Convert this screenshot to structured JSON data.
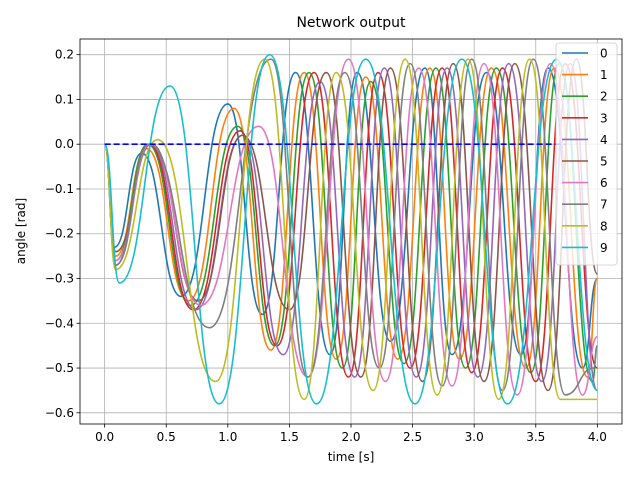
{
  "chart_data": {
    "type": "line",
    "title": "Network output",
    "xlabel": "time [s]",
    "ylabel": "angle [rad]",
    "xlim": [
      -0.2,
      4.2
    ],
    "ylim": [
      -0.625,
      0.235
    ],
    "xticks": [
      0.0,
      0.5,
      1.0,
      1.5,
      2.0,
      2.5,
      3.0,
      3.5,
      4.0
    ],
    "xtick_labels": [
      "0.0",
      "0.5",
      "1.0",
      "1.5",
      "2.0",
      "2.5",
      "3.0",
      "3.5",
      "4.0"
    ],
    "yticks": [
      -0.6,
      -0.5,
      -0.4,
      -0.3,
      -0.2,
      -0.1,
      0.0,
      0.1,
      0.2
    ],
    "ytick_labels": [
      "−0.6",
      "−0.5",
      "−0.4",
      "−0.3",
      "−0.2",
      "−0.1",
      "0.0",
      "0.1",
      "0.2"
    ],
    "grid": true,
    "legend_position": "top-right",
    "reference_line": {
      "y": 0.0,
      "x_range": [
        0.0,
        3.75
      ],
      "style": "dashed",
      "color": "#0000ff"
    },
    "series": [
      {
        "name": "0",
        "color": "#1f77b4",
        "x": [
          0.0,
          0.08,
          0.3,
          0.62,
          1.0,
          1.28,
          1.55,
          1.83,
          2.05,
          2.32,
          2.6,
          2.82,
          3.1,
          3.38,
          3.6,
          3.88,
          4.0
        ],
        "y": [
          0.0,
          -0.23,
          -0.02,
          -0.34,
          0.09,
          -0.38,
          0.16,
          -0.47,
          0.16,
          -0.44,
          0.17,
          -0.47,
          0.16,
          -0.47,
          0.17,
          -0.5,
          -0.3
        ]
      },
      {
        "name": "1",
        "color": "#ff7f0e",
        "x": [
          0.0,
          0.09,
          0.34,
          0.68,
          1.05,
          1.35,
          1.62,
          1.88,
          2.12,
          2.38,
          2.64,
          2.88,
          3.14,
          3.42,
          3.65,
          3.92,
          4.0
        ],
        "y": [
          0.0,
          -0.25,
          -0.01,
          -0.35,
          0.08,
          -0.46,
          0.16,
          -0.48,
          0.15,
          -0.48,
          0.17,
          -0.48,
          0.17,
          -0.5,
          0.17,
          -0.52,
          -0.3
        ]
      },
      {
        "name": "2",
        "color": "#2ca02c",
        "x": [
          0.0,
          0.09,
          0.35,
          0.7,
          1.08,
          1.38,
          1.66,
          1.93,
          2.16,
          2.43,
          2.69,
          2.93,
          3.18,
          3.46,
          3.69,
          3.96,
          4.0
        ],
        "y": [
          0.0,
          -0.26,
          0.0,
          -0.36,
          0.04,
          -0.45,
          0.16,
          -0.5,
          0.14,
          -0.49,
          0.17,
          -0.5,
          0.17,
          -0.51,
          0.18,
          -0.53,
          -0.45
        ]
      },
      {
        "name": "3",
        "color": "#d62728",
        "x": [
          0.0,
          0.09,
          0.36,
          0.72,
          1.1,
          1.4,
          1.7,
          1.98,
          2.22,
          2.48,
          2.74,
          2.98,
          3.23,
          3.5,
          3.74,
          4.0
        ],
        "y": [
          0.0,
          -0.27,
          0.0,
          -0.37,
          0.03,
          -0.45,
          0.16,
          -0.52,
          0.16,
          -0.5,
          0.17,
          -0.51,
          0.17,
          -0.53,
          0.18,
          -0.5
        ]
      },
      {
        "name": "4",
        "color": "#9467bd",
        "x": [
          0.0,
          0.09,
          0.37,
          0.74,
          1.12,
          1.45,
          1.75,
          2.03,
          2.27,
          2.53,
          2.78,
          3.03,
          3.28,
          3.55,
          3.78,
          4.0
        ],
        "y": [
          0.0,
          -0.27,
          0.0,
          -0.37,
          0.02,
          -0.47,
          0.14,
          -0.52,
          0.17,
          -0.52,
          0.17,
          -0.52,
          0.18,
          -0.53,
          0.18,
          -0.55
        ]
      },
      {
        "name": "5",
        "color": "#8c564b",
        "x": [
          0.0,
          0.09,
          0.38,
          0.76,
          1.12,
          1.5,
          1.8,
          2.08,
          2.32,
          2.58,
          2.83,
          3.08,
          3.33,
          3.6,
          3.83,
          4.0
        ],
        "y": [
          0.0,
          -0.24,
          0.0,
          -0.35,
          0.02,
          -0.37,
          0.16,
          -0.52,
          0.17,
          -0.53,
          0.18,
          -0.53,
          0.18,
          -0.55,
          0.19,
          -0.29
        ]
      },
      {
        "name": "6",
        "color": "#e377c2",
        "x": [
          0.0,
          0.09,
          0.37,
          0.78,
          1.25,
          1.65,
          1.98,
          2.28,
          2.55,
          2.82,
          3.08,
          3.35,
          3.62,
          3.88,
          4.0
        ],
        "y": [
          0.0,
          -0.26,
          0.0,
          -0.36,
          0.04,
          -0.52,
          0.19,
          -0.53,
          0.17,
          -0.54,
          0.18,
          -0.56,
          0.18,
          -0.56,
          -0.43
        ]
      },
      {
        "name": "7",
        "color": "#7f7f7f",
        "x": [
          0.0,
          0.09,
          0.36,
          0.85,
          1.35,
          1.65,
          1.95,
          2.23,
          2.48,
          2.74,
          2.98,
          3.23,
          3.48,
          3.74,
          3.97,
          4.0
        ],
        "y": [
          0.0,
          -0.27,
          0.0,
          -0.41,
          0.19,
          -0.52,
          0.16,
          -0.5,
          0.18,
          -0.54,
          0.19,
          -0.55,
          0.19,
          -0.56,
          -0.5,
          -0.45
        ]
      },
      {
        "name": "8",
        "color": "#bcbd22",
        "x": [
          0.0,
          0.09,
          0.43,
          0.9,
          1.3,
          1.62,
          1.88,
          2.18,
          2.44,
          2.7,
          2.95,
          3.2,
          3.45,
          3.7,
          3.95,
          4.0
        ],
        "y": [
          0.0,
          -0.28,
          0.01,
          -0.53,
          0.19,
          -0.57,
          0.16,
          -0.55,
          0.19,
          -0.56,
          0.19,
          -0.57,
          0.19,
          -0.57,
          -0.57,
          -0.57
        ]
      },
      {
        "name": "9",
        "color": "#17becf",
        "x": [
          0.0,
          0.12,
          0.53,
          0.93,
          1.34,
          1.72,
          2.12,
          2.52,
          2.9,
          3.27,
          3.67,
          4.0
        ],
        "y": [
          0.0,
          -0.31,
          0.13,
          -0.58,
          0.2,
          -0.58,
          0.19,
          -0.58,
          0.19,
          -0.58,
          0.19,
          -0.55
        ]
      }
    ]
  }
}
